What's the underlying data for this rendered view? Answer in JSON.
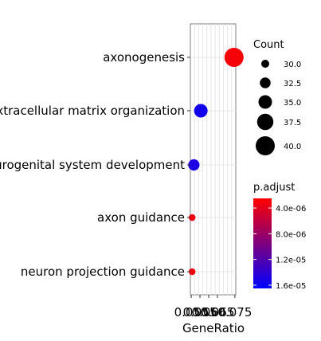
{
  "chart_data": {
    "type": "scatter",
    "categories": [
      "axonogenesis",
      "extracellular matrix organization",
      "urogenital system development",
      "axon guidance",
      "neuron projection guidance"
    ],
    "xlabel": "GeneRatio",
    "x_tick_labels": [
      "0.050",
      "0.055",
      "0.060",
      "0.065",
      "0.075"
    ],
    "x_ticks": [
      0.05,
      0.055,
      0.06,
      0.065,
      0.075
    ],
    "xlim": [
      0.0495,
      0.0755
    ],
    "grid": true,
    "points": [
      {
        "category": "axonogenesis",
        "x": 0.0745,
        "count": 40,
        "p_adjust": 3e-06
      },
      {
        "category": "extracellular matrix organization",
        "x": 0.0555,
        "count": 35,
        "p_adjust": 1.55e-05
      },
      {
        "category": "urogenital system development",
        "x": 0.0515,
        "count": 33,
        "p_adjust": 1.5e-05
      },
      {
        "category": "axon guidance",
        "x": 0.0505,
        "count": 29,
        "p_adjust": 3.5e-06
      },
      {
        "category": "neuron projection guidance",
        "x": 0.0505,
        "count": 29,
        "p_adjust": 3.5e-06
      }
    ],
    "size_legend": {
      "title": "Count",
      "values": [
        30,
        32.5,
        35,
        37.5,
        40
      ],
      "labels": [
        "30.0",
        "32.5",
        "35.0",
        "37.5",
        "40.0"
      ]
    },
    "color_legend": {
      "title": "p.adjust",
      "labels": [
        "4.0e-06",
        "8.0e-06",
        "1.2e-05",
        "1.6e-05"
      ],
      "values": [
        4e-06,
        8e-06,
        1.2e-05,
        1.6e-05
      ],
      "range": [
        2.5e-06,
        1.65e-05
      ],
      "low_color": "#ff0000",
      "high_color": "#0000ff"
    },
    "legend_position": "right"
  }
}
